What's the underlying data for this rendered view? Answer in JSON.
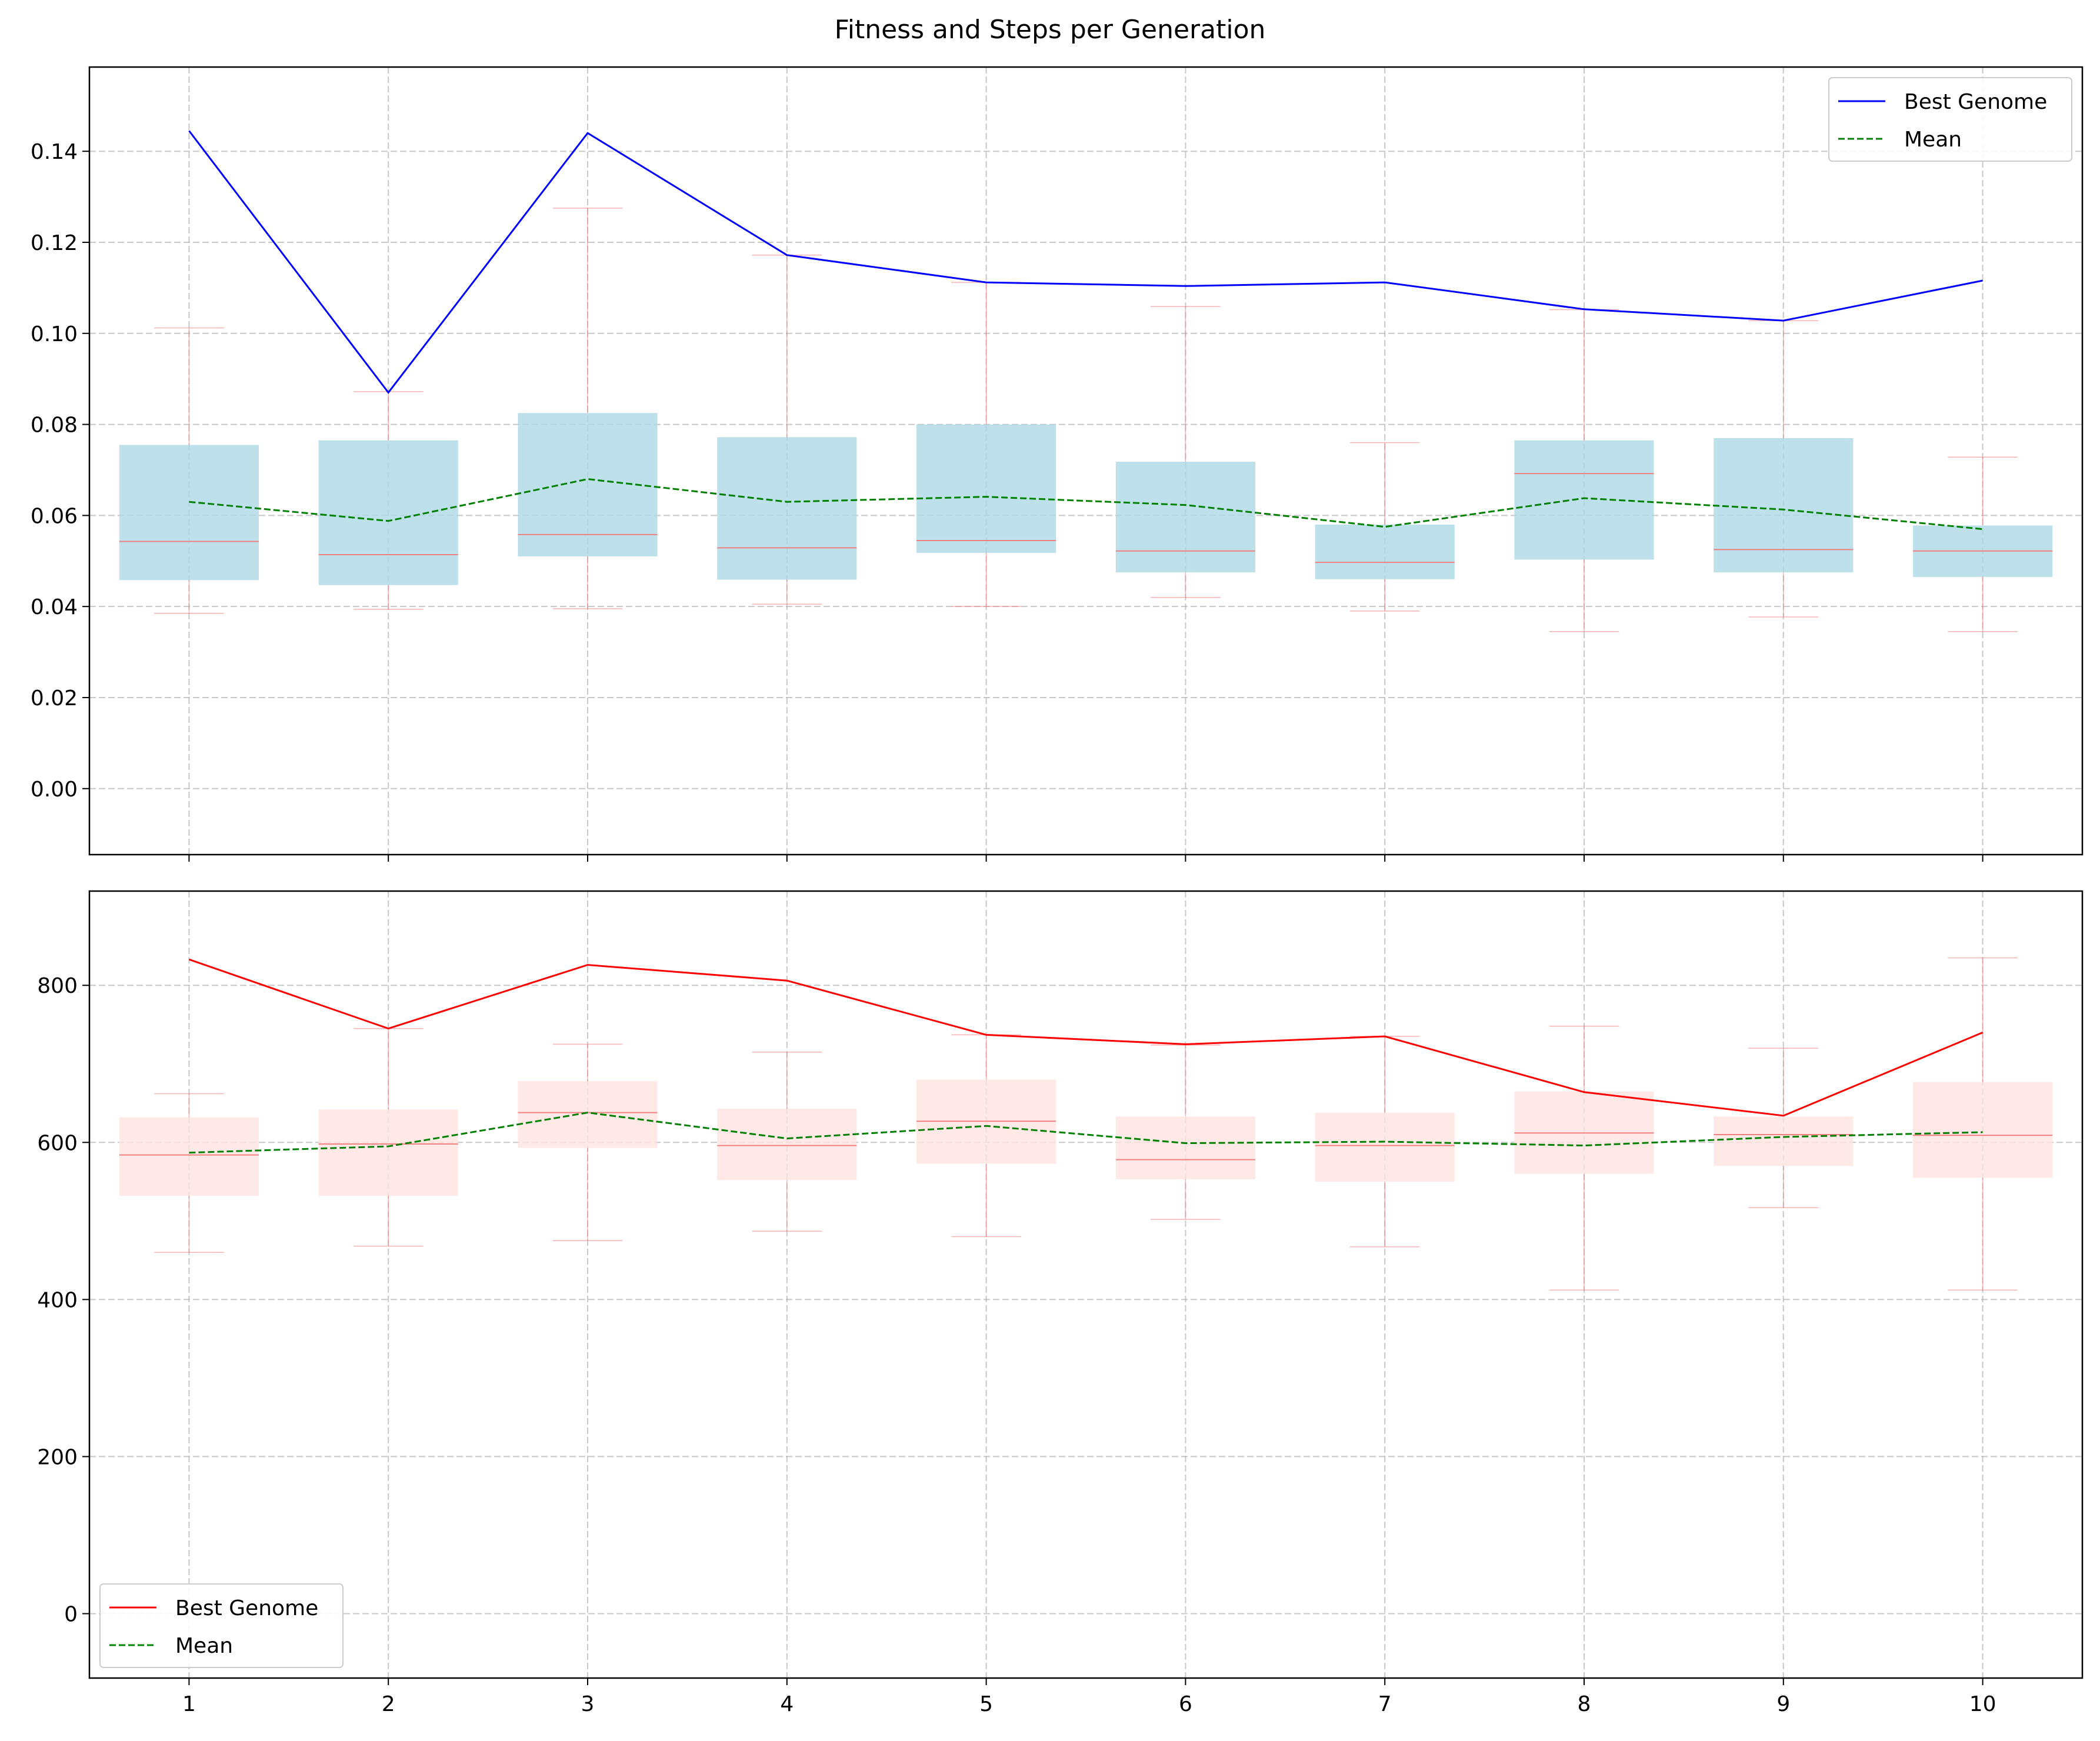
{
  "chart_data": {
    "title": "Fitness and Steps per Generation",
    "x": [
      1,
      2,
      3,
      4,
      5,
      6,
      7,
      8,
      9,
      10
    ],
    "subplots": [
      {
        "type": "box-line",
        "ylim": [
          -0.0145,
          0.1585
        ],
        "yticks": [
          0.0,
          0.02,
          0.04,
          0.06,
          0.08,
          0.1,
          0.12,
          0.14
        ],
        "ytick_labels": [
          "0.00",
          "0.02",
          "0.04",
          "0.06",
          "0.08",
          "0.10",
          "0.12",
          "0.14"
        ],
        "grid": true,
        "legend_placement": "upper right",
        "box_color": "#add8e6",
        "median_color": "#f08080",
        "boxes": [
          {
            "q1": 0.0458,
            "median": 0.0543,
            "q3": 0.0755,
            "whisker_low": 0.0385,
            "whisker_high": 0.1012
          },
          {
            "q1": 0.0447,
            "median": 0.0514,
            "q3": 0.0765,
            "whisker_low": 0.0394,
            "whisker_high": 0.0872
          },
          {
            "q1": 0.051,
            "median": 0.0558,
            "q3": 0.0825,
            "whisker_low": 0.0395,
            "whisker_high": 0.1275
          },
          {
            "q1": 0.0459,
            "median": 0.0529,
            "q3": 0.0772,
            "whisker_low": 0.0405,
            "whisker_high": 0.1172
          },
          {
            "q1": 0.0518,
            "median": 0.0545,
            "q3": 0.08,
            "whisker_low": 0.04,
            "whisker_high": 0.1112
          },
          {
            "q1": 0.0475,
            "median": 0.0522,
            "q3": 0.0718,
            "whisker_low": 0.042,
            "whisker_high": 0.1059
          },
          {
            "q1": 0.046,
            "median": 0.0497,
            "q3": 0.058,
            "whisker_low": 0.039,
            "whisker_high": 0.076
          },
          {
            "q1": 0.0503,
            "median": 0.0692,
            "q3": 0.0765,
            "whisker_low": 0.0345,
            "whisker_high": 0.1052
          },
          {
            "q1": 0.0475,
            "median": 0.0525,
            "q3": 0.077,
            "whisker_low": 0.0377,
            "whisker_high": 0.1028
          },
          {
            "q1": 0.0465,
            "median": 0.0522,
            "q3": 0.0578,
            "whisker_low": 0.0345,
            "whisker_high": 0.0728
          }
        ],
        "series": [
          {
            "name": "Best Genome",
            "color": "#0000ff",
            "style": "solid",
            "values": [
              0.1445,
              0.087,
              0.144,
              0.1172,
              0.1112,
              0.1104,
              0.1112,
              0.1053,
              0.1028,
              0.1116
            ]
          },
          {
            "name": "Mean",
            "color": "#008000",
            "style": "dashed",
            "values": [
              0.063,
              0.0588,
              0.068,
              0.063,
              0.0641,
              0.0623,
              0.0575,
              0.0638,
              0.0613,
              0.057
            ]
          }
        ]
      },
      {
        "type": "box-line",
        "ylim": [
          -82,
          920
        ],
        "yticks": [
          0,
          200,
          400,
          600,
          800
        ],
        "ytick_labels": [
          "0",
          "200",
          "400",
          "600",
          "800"
        ],
        "grid": true,
        "legend_placement": "lower left",
        "box_color": "#ffe4e1",
        "median_color": "#f08080",
        "boxes": [
          {
            "q1": 532,
            "median": 584,
            "q3": 632,
            "whisker_low": 460,
            "whisker_high": 662
          },
          {
            "q1": 532,
            "median": 598,
            "q3": 642,
            "whisker_low": 468,
            "whisker_high": 745
          },
          {
            "q1": 593,
            "median": 638,
            "q3": 678,
            "whisker_low": 475,
            "whisker_high": 725
          },
          {
            "q1": 552,
            "median": 596,
            "q3": 643,
            "whisker_low": 487,
            "whisker_high": 715
          },
          {
            "q1": 573,
            "median": 627,
            "q3": 680,
            "whisker_low": 480,
            "whisker_high": 737
          },
          {
            "q1": 553,
            "median": 578,
            "q3": 633,
            "whisker_low": 502,
            "whisker_high": 724
          },
          {
            "q1": 550,
            "median": 596,
            "q3": 638,
            "whisker_low": 467,
            "whisker_high": 735
          },
          {
            "q1": 560,
            "median": 612,
            "q3": 665,
            "whisker_low": 412,
            "whisker_high": 748
          },
          {
            "q1": 570,
            "median": 610,
            "q3": 633,
            "whisker_low": 517,
            "whisker_high": 720
          },
          {
            "q1": 555,
            "median": 609,
            "q3": 677,
            "whisker_low": 412,
            "whisker_high": 835
          }
        ],
        "series": [
          {
            "name": "Best Genome",
            "color": "#ff0000",
            "style": "solid",
            "values": [
              833,
              745,
              826,
              806,
              737,
              725,
              735,
              664,
              634,
              740
            ]
          },
          {
            "name": "Mean",
            "color": "#008000",
            "style": "dashed",
            "values": [
              587,
              595,
              638,
              605,
              621,
              599,
              601,
              596,
              607,
              613
            ]
          }
        ]
      }
    ]
  }
}
